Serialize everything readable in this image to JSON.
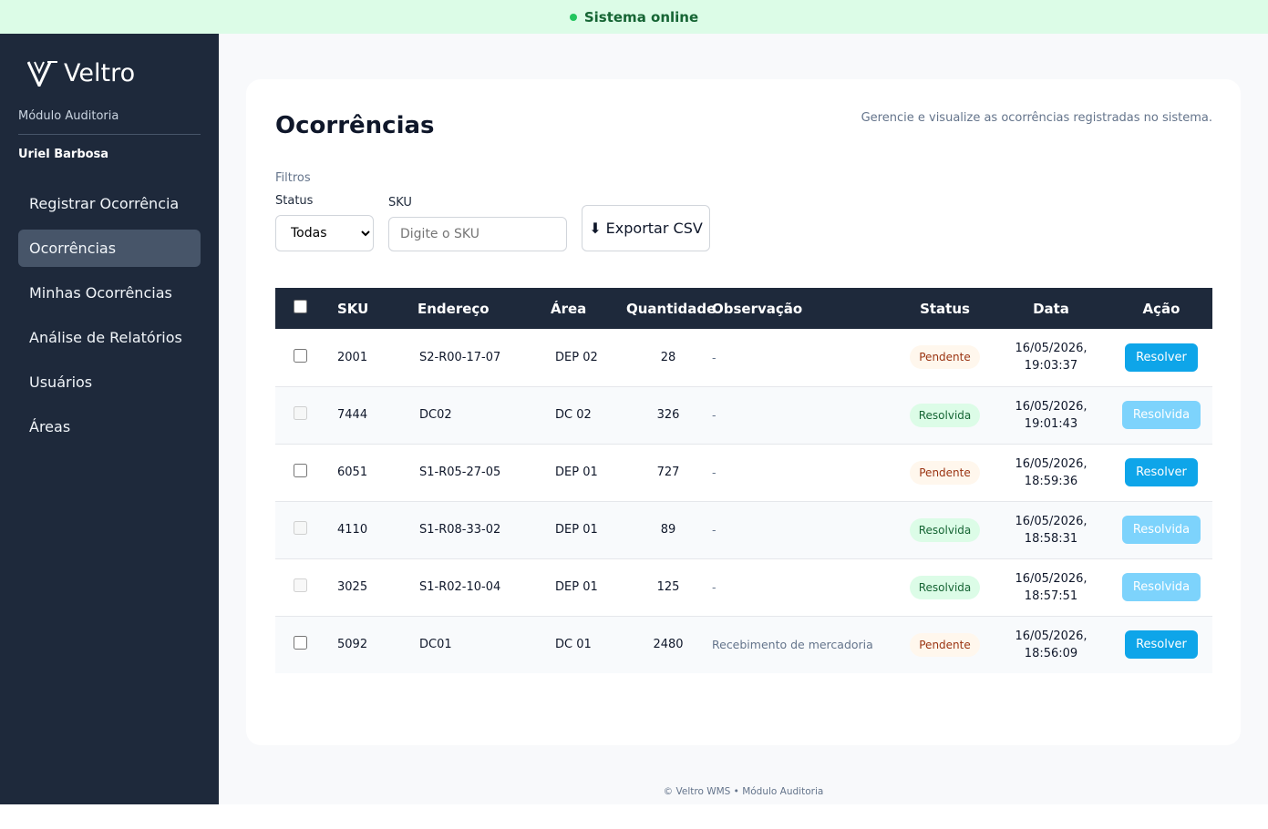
{
  "status_bar": {
    "text": "Sistema online"
  },
  "sidebar": {
    "brand": "Veltro",
    "module": "Módulo Auditoria",
    "user": "Uriel Barbosa",
    "nav": [
      "Registrar Ocorrência",
      "Ocorrências",
      "Minhas Ocorrências",
      "Análise de Relatórios",
      "Usuários",
      "Áreas"
    ],
    "active": 1
  },
  "page": {
    "title": "Ocorrências",
    "subtitle": "Gerencie e visualize as ocorrências registradas no sistema.",
    "filters_label": "Filtros",
    "status_label": "Status",
    "status_value": "Todas",
    "sku_label": "SKU",
    "sku_placeholder": "Digite o SKU",
    "export_button": "⬇ Exportar CSV"
  },
  "table": {
    "headers": [
      "SKU",
      "Endereço",
      "Área",
      "Quantidade",
      "Observação",
      "Status",
      "Data",
      "Ação"
    ],
    "rows": [
      {
        "sku": "2001",
        "address": "S2-R00-17-07",
        "area": "DEP 02",
        "quantity": 28,
        "note": "-",
        "status": "Pendente",
        "date": "16/05/2026, 19:03:37",
        "action": "Resolver",
        "resolved": false
      },
      {
        "sku": "7444",
        "address": "DC02",
        "area": "DC 02",
        "quantity": 326,
        "note": "-",
        "status": "Resolvida",
        "date": "16/05/2026, 19:01:43",
        "action": "Resolvida",
        "resolved": true
      },
      {
        "sku": "6051",
        "address": "S1-R05-27-05",
        "area": "DEP 01",
        "quantity": 727,
        "note": "-",
        "status": "Pendente",
        "date": "16/05/2026, 18:59:36",
        "action": "Resolver",
        "resolved": false
      },
      {
        "sku": "4110",
        "address": "S1-R08-33-02",
        "area": "DEP 01",
        "quantity": 89,
        "note": "-",
        "status": "Resolvida",
        "date": "16/05/2026, 18:58:31",
        "action": "Resolvida",
        "resolved": true
      },
      {
        "sku": "3025",
        "address": "S1-R02-10-04",
        "area": "DEP 01",
        "quantity": 125,
        "note": "-",
        "status": "Resolvida",
        "date": "16/05/2026, 18:57:51",
        "action": "Resolvida",
        "resolved": true
      },
      {
        "sku": "5092",
        "address": "DC01",
        "area": "DC 01",
        "quantity": 2480,
        "note": "Recebimento de mercadoria",
        "status": "Pendente",
        "date": "16/05/2026, 18:56:09",
        "action": "Resolver",
        "resolved": false
      }
    ]
  },
  "footer": {
    "text": "© Veltro WMS • Módulo Auditoria"
  }
}
